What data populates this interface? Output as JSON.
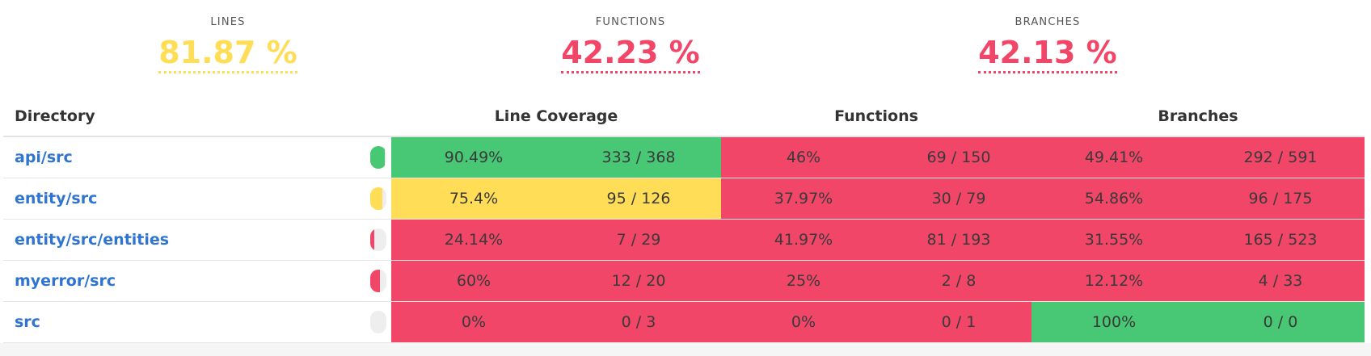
{
  "colors": {
    "high": "#48c774",
    "medium": "#ffdd57",
    "low": "#f14668",
    "link": "#2f74d0",
    "empty": "#eeeeee"
  },
  "summary": {
    "lines": {
      "label": "LINES",
      "value": "81.87 %",
      "level": "medium"
    },
    "functions": {
      "label": "FUNCTIONS",
      "value": "42.23 %",
      "level": "low"
    },
    "branches": {
      "label": "BRANCHES",
      "value": "42.13 %",
      "level": "low"
    }
  },
  "table": {
    "headers": {
      "directory": "Directory",
      "line_coverage": "Line Coverage",
      "functions": "Functions",
      "branches": "Branches"
    },
    "rows": [
      {
        "dir": "api/src",
        "line_fraction": 0.9049,
        "line_pct": "90.49%",
        "line_ratio": "333 / 368",
        "line_level": "high",
        "fn_pct": "46%",
        "fn_ratio": "69 / 150",
        "fn_level": "low",
        "br_pct": "49.41%",
        "br_ratio": "292 / 591",
        "br_level": "low"
      },
      {
        "dir": "entity/src",
        "line_fraction": 0.754,
        "line_pct": "75.4%",
        "line_ratio": "95 / 126",
        "line_level": "medium",
        "fn_pct": "37.97%",
        "fn_ratio": "30 / 79",
        "fn_level": "low",
        "br_pct": "54.86%",
        "br_ratio": "96 / 175",
        "br_level": "low"
      },
      {
        "dir": "entity/src/entities",
        "line_fraction": 0.2414,
        "line_pct": "24.14%",
        "line_ratio": "7 / 29",
        "line_level": "low",
        "fn_pct": "41.97%",
        "fn_ratio": "81 / 193",
        "fn_level": "low",
        "br_pct": "31.55%",
        "br_ratio": "165 / 523",
        "br_level": "low"
      },
      {
        "dir": "myerror/src",
        "line_fraction": 0.6,
        "line_pct": "60%",
        "line_ratio": "12 / 20",
        "line_level": "low",
        "fn_pct": "25%",
        "fn_ratio": "2 / 8",
        "fn_level": "low",
        "br_pct": "12.12%",
        "br_ratio": "4 / 33",
        "br_level": "low"
      },
      {
        "dir": "src",
        "line_fraction": 0,
        "line_pct": "0%",
        "line_ratio": "0 / 3",
        "line_level": "low",
        "fn_pct": "0%",
        "fn_ratio": "0 / 1",
        "fn_level": "low",
        "br_pct": "100%",
        "br_ratio": "0 / 0",
        "br_level": "high"
      }
    ]
  }
}
